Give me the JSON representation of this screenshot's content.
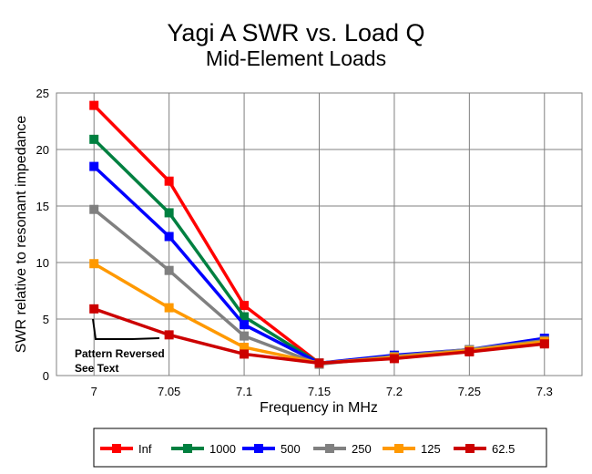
{
  "chart_data": {
    "type": "line",
    "title": "Yagi A SWR vs. Load Q",
    "subtitle": "Mid-Element Loads",
    "xlabel": "Frequency in MHz",
    "ylabel": "SWR relative to resonant impedance",
    "categories": [
      "7",
      "7.05",
      "7.1",
      "7.15",
      "7.2",
      "7.25",
      "7.3"
    ],
    "ylim": [
      0,
      25
    ],
    "yticks": [
      "0",
      "5",
      "10",
      "15",
      "20",
      "25"
    ],
    "grid": true,
    "legend_placement": "bottom",
    "annotation": [
      "Pattern Reversed",
      "See Text"
    ],
    "series": [
      {
        "name": "Inf",
        "color": "#ff0000",
        "values": [
          23.9,
          17.2,
          6.2,
          1.1,
          1.6,
          2.2,
          2.9
        ]
      },
      {
        "name": "1000",
        "color": "#008040",
        "values": [
          20.9,
          14.4,
          5.2,
          1.1,
          1.7,
          2.2,
          3.1
        ]
      },
      {
        "name": "500",
        "color": "#0000ff",
        "values": [
          18.5,
          12.3,
          4.5,
          1.1,
          1.8,
          2.3,
          3.3
        ]
      },
      {
        "name": "250",
        "color": "#808080",
        "values": [
          14.7,
          9.3,
          3.5,
          1.0,
          1.7,
          2.3,
          3.1
        ]
      },
      {
        "name": "125",
        "color": "#ff9900",
        "values": [
          9.9,
          6.0,
          2.5,
          1.1,
          1.6,
          2.2,
          3.0
        ]
      },
      {
        "name": "62.5",
        "color": "#cc0000",
        "values": [
          5.9,
          3.6,
          1.9,
          1.1,
          1.5,
          2.1,
          2.8
        ]
      }
    ]
  }
}
